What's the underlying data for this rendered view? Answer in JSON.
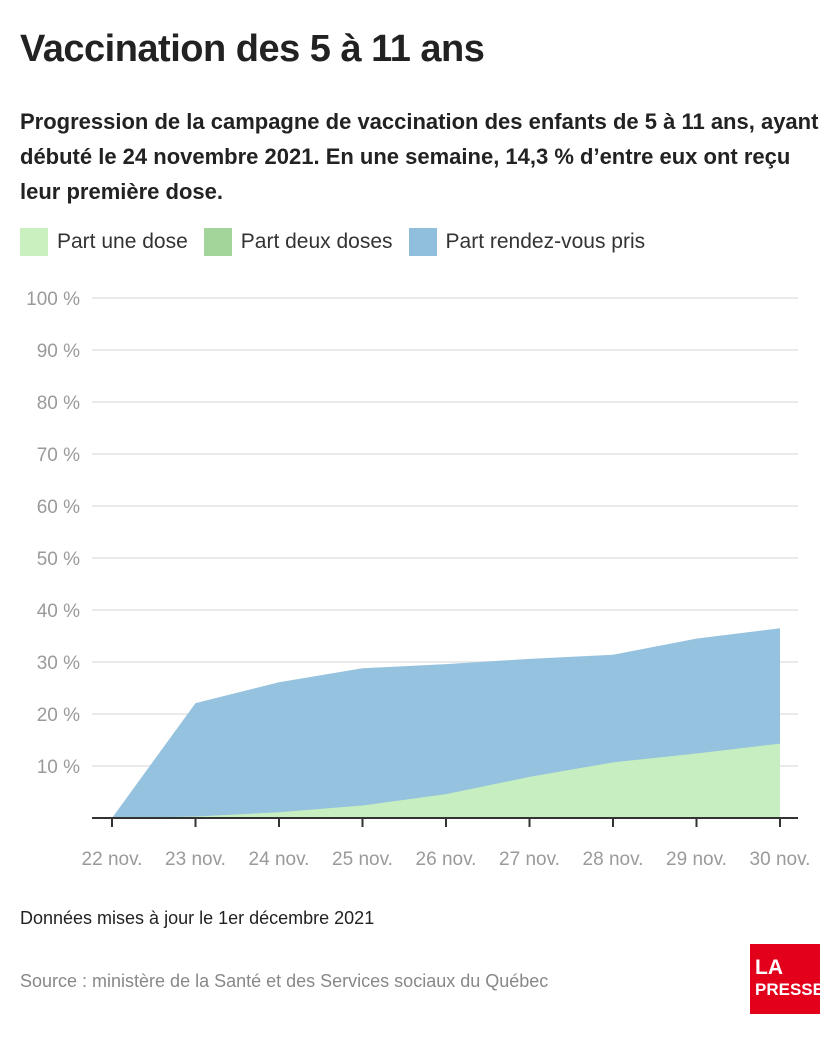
{
  "header": {
    "title": "Vaccination des 5 à 11 ans",
    "subtitle": "Progression de la campagne de vaccination des enfants de 5 à 11 ans, ayant débuté le 24 novembre 2021. En une semaine, 14,3 % d’entre eux ont reçu leur première dose."
  },
  "legend": [
    {
      "label": "Part une dose",
      "color": "#c9f0be"
    },
    {
      "label": "Part deux doses",
      "color": "#a3d49a"
    },
    {
      "label": "Part rendez-vous pris",
      "color": "#8fbfdc"
    }
  ],
  "chart_data": {
    "type": "area",
    "categories": [
      "22 nov.",
      "23 nov.",
      "24 nov.",
      "25 nov.",
      "26 nov.",
      "27 nov.",
      "28 nov.",
      "29 nov.",
      "30 nov."
    ],
    "series": [
      {
        "name": "Part rendez-vous pris",
        "color": "#8fbfdc",
        "values": [
          0,
          22.1,
          26.1,
          28.8,
          29.6,
          30.6,
          31.4,
          34.5,
          36.5
        ]
      },
      {
        "name": "Part une dose",
        "color": "#c9f0be",
        "values": [
          0,
          0.3,
          1.1,
          2.4,
          4.6,
          7.9,
          10.7,
          12.4,
          14.3
        ]
      },
      {
        "name": "Part deux doses",
        "color": "#a3d49a",
        "values": [
          0,
          0,
          0,
          0,
          0,
          0,
          0,
          0,
          0
        ]
      }
    ],
    "yticks": [
      "",
      "10 %",
      "20 %",
      "30 %",
      "40 %",
      "50 %",
      "60 %",
      "70 %",
      "80 %",
      "90 %",
      "100 %"
    ],
    "ylim": [
      0,
      100
    ],
    "grid": true
  },
  "footer": {
    "note": "Données mises à jour le 1er décembre 2021",
    "source": "Source : ministère de la Santé et des Services sociaux du Québec",
    "logo_line1": "LA",
    "logo_line2": "PRESSE"
  }
}
